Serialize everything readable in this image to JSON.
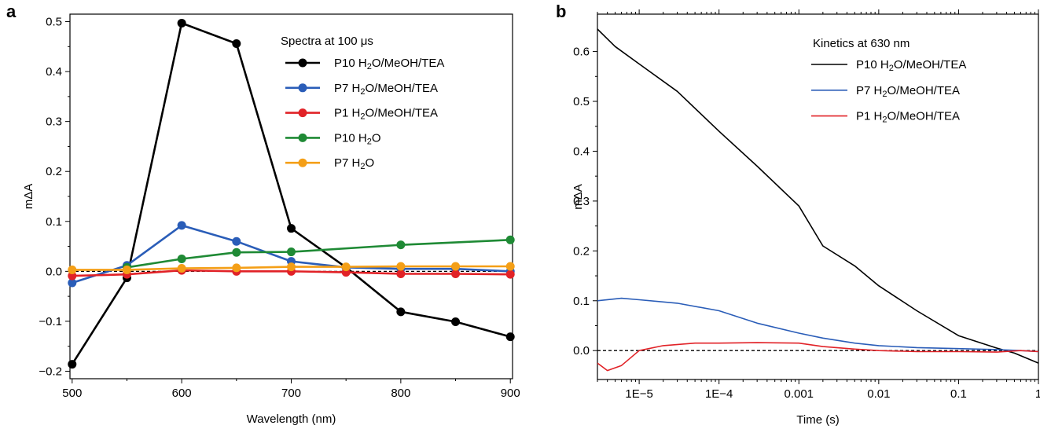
{
  "chart_data": [
    {
      "type": "line",
      "panel_label": "a",
      "xlabel": "Wavelength (nm)",
      "ylabel": "mΔA",
      "xlim": [
        498,
        902
      ],
      "ylim": [
        -0.215,
        0.515
      ],
      "xticks": [
        500,
        600,
        700,
        800,
        900
      ],
      "xtick_labels": [
        "500",
        "600",
        "700",
        "800",
        "900"
      ],
      "yticks": [
        -0.2,
        -0.1,
        0.0,
        0.1,
        0.2,
        0.3,
        0.4,
        0.5
      ],
      "ytick_labels": [
        "−0.2",
        "−0.1",
        "0.0",
        "0.1",
        "0.2",
        "0.3",
        "0.4",
        "0.5"
      ],
      "zero_line": true,
      "legend": {
        "title": "Spectra at 100 μs",
        "position": "top-right"
      },
      "x": [
        500,
        550,
        600,
        650,
        700,
        750,
        800,
        850,
        900
      ],
      "series": [
        {
          "name": "P10 H₂O/MeOH/TEA",
          "color": "#000000",
          "values": [
            -0.186,
            -0.013,
            0.497,
            0.456,
            0.086,
            0.008,
            -0.081,
            -0.101,
            -0.131
          ]
        },
        {
          "name": "P7 H₂O/MeOH/TEA",
          "color": "#2a5db8",
          "values": [
            -0.023,
            0.012,
            0.092,
            0.06,
            0.02,
            0.008,
            0.005,
            0.005,
            0.0
          ]
        },
        {
          "name": "P1 H₂O/MeOH/TEA",
          "color": "#e12227",
          "values": [
            -0.009,
            -0.006,
            0.002,
            0.0,
            0.0,
            -0.002,
            -0.005,
            -0.005,
            -0.006
          ]
        },
        {
          "name": "P10 H₂O",
          "color": "#1f8a35",
          "values": [
            null,
            0.008,
            0.025,
            0.038,
            0.039,
            null,
            0.053,
            null,
            0.063
          ]
        },
        {
          "name": "P7 H₂O",
          "color": "#f49f17",
          "values": [
            0.003,
            0.003,
            0.006,
            0.007,
            0.009,
            0.009,
            0.01,
            0.01,
            0.01
          ]
        }
      ]
    },
    {
      "type": "line",
      "panel_label": "b",
      "xlabel": "Time (s)",
      "ylabel": "mΔA",
      "xscale": "log",
      "xlim": [
        3e-06,
        1
      ],
      "ylim": [
        -0.058,
        0.675
      ],
      "xticks": [
        1e-05,
        0.0001,
        0.001,
        0.01,
        0.1,
        1
      ],
      "xtick_labels": [
        "1E−5",
        "1E−4",
        "0.001",
        "0.01",
        "0.1",
        "1"
      ],
      "yticks": [
        0.0,
        0.1,
        0.2,
        0.3,
        0.4,
        0.5,
        0.6
      ],
      "ytick_labels": [
        "0.0",
        "0.1",
        "0.2",
        "0.3",
        "0.4",
        "0.5",
        "0.6"
      ],
      "zero_line": true,
      "legend": {
        "title": "Kinetics at 630 nm",
        "position": "top-right"
      },
      "series": [
        {
          "name": "P10 H₂O/MeOH/TEA",
          "color": "#000000",
          "x": [
            3e-06,
            5e-06,
            1e-05,
            3e-05,
            0.0001,
            0.0003,
            0.001,
            0.002,
            0.005,
            0.01,
            0.03,
            0.1,
            0.3,
            0.5,
            1
          ],
          "values": [
            0.645,
            0.61,
            0.575,
            0.52,
            0.44,
            0.37,
            0.29,
            0.21,
            0.17,
            0.13,
            0.08,
            0.03,
            0.005,
            -0.005,
            -0.025
          ]
        },
        {
          "name": "P7 H₂O/MeOH/TEA",
          "color": "#2a5db8",
          "x": [
            3e-06,
            6e-06,
            1e-05,
            3e-05,
            0.0001,
            0.0003,
            0.001,
            0.002,
            0.005,
            0.01,
            0.03,
            0.1,
            0.3,
            0.6,
            1
          ],
          "values": [
            0.1,
            0.105,
            0.102,
            0.095,
            0.08,
            0.055,
            0.035,
            0.025,
            0.015,
            0.01,
            0.006,
            0.004,
            0.002,
            0.0,
            -0.002
          ]
        },
        {
          "name": "P1 H₂O/MeOH/TEA",
          "color": "#e12227",
          "x": [
            3e-06,
            4e-06,
            6e-06,
            1e-05,
            2e-05,
            5e-05,
            0.0001,
            0.0003,
            0.001,
            0.002,
            0.005,
            0.01,
            0.03,
            0.1,
            0.3,
            0.6,
            1
          ],
          "values": [
            -0.025,
            -0.04,
            -0.03,
            0.0,
            0.01,
            0.015,
            0.015,
            0.016,
            0.015,
            0.008,
            0.003,
            0.0,
            -0.002,
            -0.002,
            -0.003,
            0.0,
            -0.002
          ]
        }
      ]
    }
  ]
}
